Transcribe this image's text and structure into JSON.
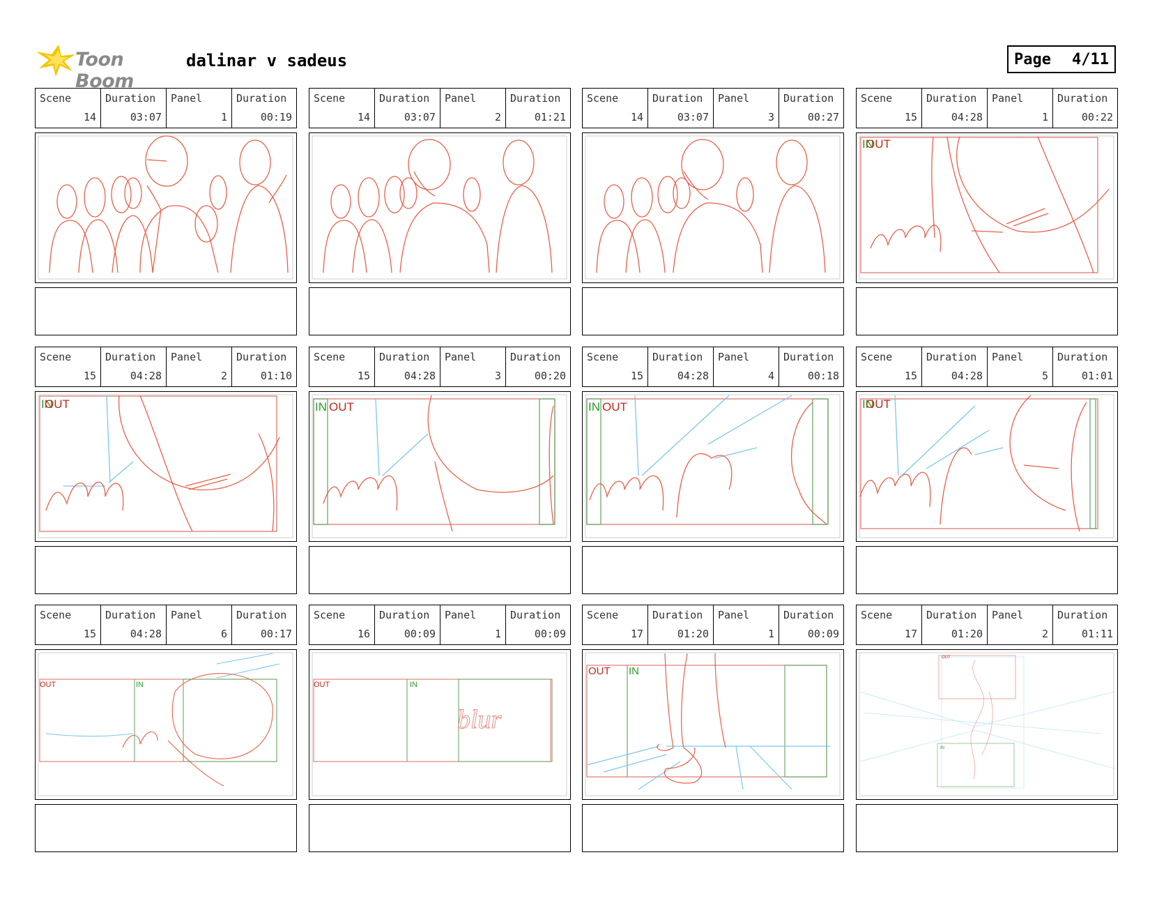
{
  "header": {
    "logo_text": "Toon Boom",
    "project_title": "dalinar v sadeus",
    "page_label": "Page",
    "page_number": "4/11"
  },
  "labels": {
    "scene": "Scene",
    "duration": "Duration",
    "panel": "Panel"
  },
  "panels": [
    {
      "scene": "14",
      "scene_duration": "03:07",
      "panel": "1",
      "panel_duration": "00:19",
      "marks": []
    },
    {
      "scene": "14",
      "scene_duration": "03:07",
      "panel": "2",
      "panel_duration": "01:21",
      "marks": []
    },
    {
      "scene": "14",
      "scene_duration": "03:07",
      "panel": "3",
      "panel_duration": "00:27",
      "marks": []
    },
    {
      "scene": "15",
      "scene_duration": "04:28",
      "panel": "1",
      "panel_duration": "00:22",
      "marks": [
        "IN",
        "OUT"
      ]
    },
    {
      "scene": "15",
      "scene_duration": "04:28",
      "panel": "2",
      "panel_duration": "01:10",
      "marks": [
        "IN",
        "OUT"
      ]
    },
    {
      "scene": "15",
      "scene_duration": "04:28",
      "panel": "3",
      "panel_duration": "00:20",
      "marks": [
        "IN",
        "OUT"
      ]
    },
    {
      "scene": "15",
      "scene_duration": "04:28",
      "panel": "4",
      "panel_duration": "00:18",
      "marks": [
        "IN",
        "OUT"
      ]
    },
    {
      "scene": "15",
      "scene_duration": "04:28",
      "panel": "5",
      "panel_duration": "01:01",
      "marks": [
        "IN",
        "OUT"
      ]
    },
    {
      "scene": "15",
      "scene_duration": "04:28",
      "panel": "6",
      "panel_duration": "00:17",
      "marks": [
        "OUT",
        "IN"
      ]
    },
    {
      "scene": "16",
      "scene_duration": "00:09",
      "panel": "1",
      "panel_duration": "00:09",
      "marks": [
        "OUT",
        "IN"
      ],
      "sketch_note": "blur"
    },
    {
      "scene": "17",
      "scene_duration": "01:20",
      "panel": "1",
      "panel_duration": "00:09",
      "marks": [
        "OUT",
        "IN"
      ]
    },
    {
      "scene": "17",
      "scene_duration": "01:20",
      "panel": "2",
      "panel_duration": "01:11",
      "marks": [
        "OUT",
        "IN"
      ]
    }
  ],
  "colors": {
    "sketch": "#e8604a",
    "guide_blue": "#7cc6ec",
    "mark_in": "#2a9a2a",
    "mark_out": "#c0281c",
    "frame_red": "#e07a70",
    "frame_green": "#6aaa6a"
  }
}
